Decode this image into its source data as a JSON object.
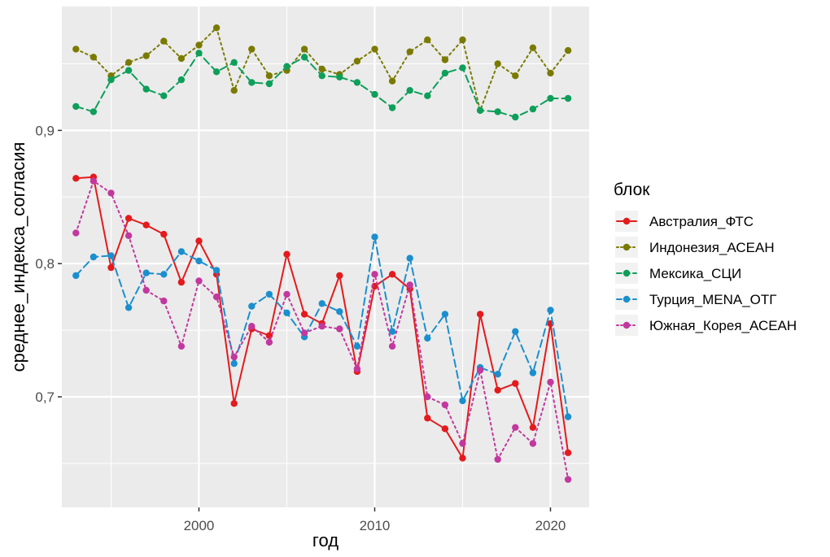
{
  "chart_data": {
    "type": "line",
    "title": "",
    "xlabel": "год",
    "ylabel": "среднее_индекса_согласия",
    "xlim": [
      1992.2,
      2022.2
    ],
    "ylim": [
      0.617,
      0.993
    ],
    "x_ticks": [
      2000,
      2010,
      2020
    ],
    "x_tick_labels": [
      "2000",
      "2010",
      "2020"
    ],
    "y_ticks": [
      0.7,
      0.8,
      0.9
    ],
    "y_tick_labels": [
      "0,7",
      "0,8",
      "0,9"
    ],
    "grid": true,
    "legend": {
      "title": "блок",
      "placement": "right"
    },
    "x": [
      1993,
      1994,
      1995,
      1996,
      1997,
      1998,
      1999,
      2000,
      2001,
      2002,
      2003,
      2004,
      2005,
      2006,
      2007,
      2008,
      2009,
      2010,
      2011,
      2012,
      2013,
      2014,
      2015,
      2016,
      2017,
      2018,
      2019,
      2020,
      2021
    ],
    "series": [
      {
        "name": "Австралия_ФТС",
        "color": "#e41a1c",
        "line_style": "solid",
        "values": [
          0.864,
          0.865,
          0.797,
          0.834,
          0.829,
          0.822,
          0.786,
          0.817,
          0.792,
          0.695,
          0.751,
          0.746,
          0.807,
          0.762,
          0.755,
          0.791,
          0.719,
          0.783,
          0.792,
          0.781,
          0.684,
          0.676,
          0.654,
          0.762,
          0.705,
          0.71,
          0.677,
          0.755,
          0.658
        ]
      },
      {
        "name": "Индонезия_АСЕАН",
        "color": "#7a7a00",
        "line_style": "dotted",
        "values": [
          0.961,
          0.955,
          0.941,
          0.951,
          0.956,
          0.967,
          0.954,
          0.964,
          0.977,
          0.93,
          0.961,
          0.941,
          0.945,
          0.961,
          0.946,
          0.942,
          0.952,
          0.961,
          0.937,
          0.959,
          0.968,
          0.953,
          0.968,
          0.915,
          0.95,
          0.941,
          0.962,
          0.943,
          0.96
        ]
      },
      {
        "name": "Мексика_СЦИ",
        "color": "#0e9f5a",
        "line_style": "dashed",
        "values": [
          0.918,
          0.914,
          0.938,
          0.945,
          0.931,
          0.926,
          0.938,
          0.958,
          0.944,
          0.951,
          0.936,
          0.935,
          0.948,
          0.955,
          0.941,
          0.94,
          0.936,
          0.927,
          0.917,
          0.93,
          0.926,
          0.943,
          0.947,
          0.915,
          0.914,
          0.91,
          0.916,
          0.924,
          0.924
        ]
      },
      {
        "name": "Турция_MENA_ОТГ",
        "color": "#1b8fce",
        "line_style": "dashed",
        "values": [
          0.791,
          0.805,
          0.806,
          0.767,
          0.793,
          0.792,
          0.809,
          0.802,
          0.795,
          0.725,
          0.768,
          0.777,
          0.763,
          0.745,
          0.77,
          0.764,
          0.738,
          0.82,
          0.749,
          0.804,
          0.744,
          0.762,
          0.697,
          0.722,
          0.717,
          0.749,
          0.718,
          0.765,
          0.685
        ]
      },
      {
        "name": "Южная_Корея_АСЕАН",
        "color": "#c2389e",
        "line_style": "dotted",
        "values": [
          0.823,
          0.862,
          0.853,
          0.821,
          0.78,
          0.772,
          0.738,
          0.787,
          0.775,
          0.73,
          0.753,
          0.741,
          0.777,
          0.748,
          0.753,
          0.751,
          0.721,
          0.792,
          0.738,
          0.784,
          0.7,
          0.694,
          0.665,
          0.72,
          0.653,
          0.677,
          0.665,
          0.711,
          0.638
        ]
      }
    ]
  }
}
